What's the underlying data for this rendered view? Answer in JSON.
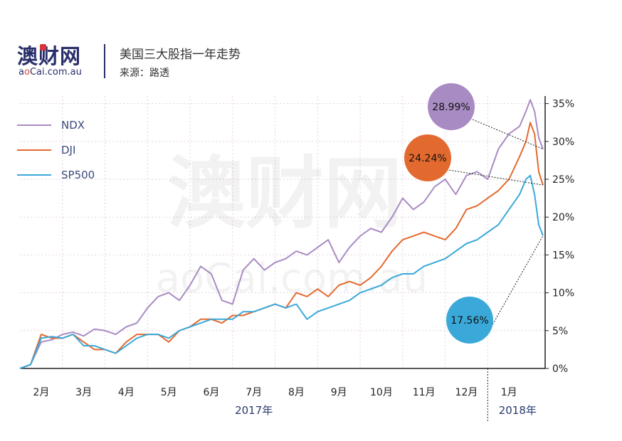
{
  "header": {
    "logo_text": "澳财网",
    "logo_sub_a": "a",
    "logo_sub_o": "o",
    "logo_sub_rest": "Cai.com.au",
    "title": "美国三大股指一年走势",
    "source": "来源：路透"
  },
  "watermark": {
    "text": "澳财网",
    "sub": "aoCai.com.au"
  },
  "colors": {
    "NDX": "#a98bc3",
    "DJI": "#e36a2f",
    "SP500": "#3aa9d9"
  },
  "chart_data": {
    "type": "line",
    "title": "美国三大股指一年走势",
    "xlabel": "",
    "ylabel": "",
    "x_ticks": [
      "2月",
      "3月",
      "4月",
      "5月",
      "6月",
      "7月",
      "8月",
      "9月",
      "10月",
      "11月",
      "12月",
      "1月"
    ],
    "year_labels": [
      "2017年",
      "2018年"
    ],
    "y_ticks": [
      "0%",
      "5%",
      "10%",
      "15%",
      "20%",
      "25%",
      "30%",
      "35%"
    ],
    "ylim": [
      0,
      36
    ],
    "xlim": [
      0,
      12.35
    ],
    "grid": true,
    "legend_position": "top-left",
    "series": [
      {
        "name": "NDX",
        "end_label": "28.99%",
        "x": [
          0,
          0.25,
          0.5,
          0.75,
          1.0,
          1.25,
          1.5,
          1.75,
          2.0,
          2.25,
          2.5,
          2.75,
          3.0,
          3.25,
          3.5,
          3.75,
          4.0,
          4.25,
          4.5,
          4.75,
          5.0,
          5.25,
          5.5,
          5.75,
          6.0,
          6.25,
          6.5,
          6.75,
          7.0,
          7.25,
          7.5,
          7.75,
          8.0,
          8.25,
          8.5,
          8.75,
          9.0,
          9.25,
          9.5,
          9.75,
          10.0,
          10.25,
          10.5,
          10.75,
          11.0,
          11.25,
          11.5,
          11.75,
          11.9,
          12.0,
          12.1,
          12.2,
          12.3
        ],
        "values": [
          0,
          0.5,
          3.5,
          3.8,
          4.5,
          4.8,
          4.3,
          5.2,
          5.0,
          4.5,
          5.5,
          6.0,
          8.0,
          9.5,
          10.0,
          9.0,
          11.0,
          13.5,
          12.5,
          9.0,
          8.5,
          13.0,
          14.5,
          13.0,
          14.0,
          14.5,
          15.5,
          15.0,
          16.0,
          17.0,
          14.0,
          16.0,
          17.5,
          18.5,
          18.0,
          20.0,
          22.5,
          21.0,
          22.0,
          24.0,
          25.0,
          23.0,
          25.5,
          26.0,
          25.0,
          29.0,
          31.0,
          32.0,
          34.0,
          35.5,
          34.0,
          30.5,
          28.99
        ]
      },
      {
        "name": "DJI",
        "end_label": "24.24%",
        "x": [
          0,
          0.25,
          0.5,
          0.75,
          1.0,
          1.25,
          1.5,
          1.75,
          2.0,
          2.25,
          2.5,
          2.75,
          3.0,
          3.25,
          3.5,
          3.75,
          4.0,
          4.25,
          4.5,
          4.75,
          5.0,
          5.25,
          5.5,
          5.75,
          6.0,
          6.25,
          6.5,
          6.75,
          7.0,
          7.25,
          7.5,
          7.75,
          8.0,
          8.25,
          8.5,
          8.75,
          9.0,
          9.25,
          9.5,
          9.75,
          10.0,
          10.25,
          10.5,
          10.75,
          11.0,
          11.25,
          11.5,
          11.75,
          11.9,
          12.0,
          12.1,
          12.2,
          12.3
        ],
        "values": [
          0,
          0.5,
          4.5,
          4.0,
          4.0,
          4.5,
          3.5,
          2.5,
          2.5,
          2.0,
          3.5,
          4.5,
          4.5,
          4.5,
          3.5,
          5.0,
          5.5,
          6.5,
          6.5,
          6.0,
          7.0,
          7.0,
          7.5,
          8.0,
          8.5,
          8.0,
          10.0,
          9.5,
          10.5,
          9.5,
          11.0,
          11.5,
          11.0,
          12.0,
          13.5,
          15.5,
          17.0,
          17.5,
          18.0,
          17.5,
          17.0,
          18.5,
          21.0,
          21.5,
          22.5,
          23.5,
          25.0,
          28.0,
          30.0,
          32.5,
          31.0,
          26.0,
          24.24
        ]
      },
      {
        "name": "SP500",
        "end_label": "17.56%",
        "x": [
          0,
          0.25,
          0.5,
          0.75,
          1.0,
          1.25,
          1.5,
          1.75,
          2.0,
          2.25,
          2.5,
          2.75,
          3.0,
          3.25,
          3.5,
          3.75,
          4.0,
          4.25,
          4.5,
          4.75,
          5.0,
          5.25,
          5.5,
          5.75,
          6.0,
          6.25,
          6.5,
          6.75,
          7.0,
          7.25,
          7.5,
          7.75,
          8.0,
          8.25,
          8.5,
          8.75,
          9.0,
          9.25,
          9.5,
          9.75,
          10.0,
          10.25,
          10.5,
          10.75,
          11.0,
          11.25,
          11.5,
          11.75,
          11.9,
          12.0,
          12.1,
          12.2,
          12.3
        ],
        "values": [
          0,
          0.5,
          4.0,
          4.2,
          4.0,
          4.5,
          3.0,
          3.0,
          2.5,
          2.0,
          3.0,
          4.0,
          4.5,
          4.5,
          4.0,
          5.0,
          5.5,
          6.0,
          6.5,
          6.5,
          6.5,
          7.5,
          7.5,
          8.0,
          8.5,
          8.0,
          8.5,
          6.5,
          7.5,
          8.0,
          8.5,
          9.0,
          10.0,
          10.5,
          11.0,
          12.0,
          12.5,
          12.5,
          13.5,
          14.0,
          14.5,
          15.5,
          16.5,
          17.0,
          18.0,
          19.0,
          21.0,
          23.0,
          25.0,
          25.5,
          23.0,
          19.0,
          17.56
        ]
      }
    ]
  }
}
